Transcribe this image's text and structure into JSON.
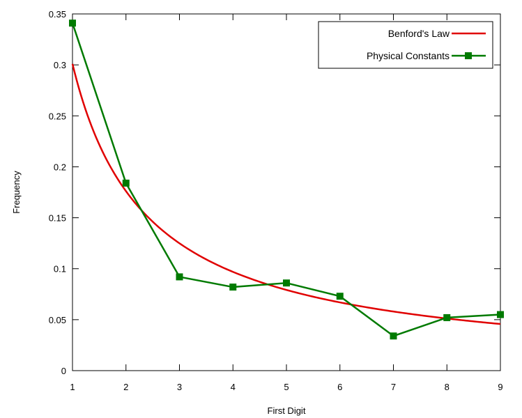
{
  "chart_data": {
    "type": "line",
    "title": "",
    "xlabel": "First Digit",
    "ylabel": "Frequency",
    "xlim": [
      1,
      9
    ],
    "ylim": [
      0,
      0.35
    ],
    "x_ticks": [
      "1",
      "2",
      "3",
      "4",
      "5",
      "6",
      "7",
      "8",
      "9"
    ],
    "y_ticks": [
      "0",
      "0.05",
      "0.1",
      "0.15",
      "0.2",
      "0.25",
      "0.3",
      "0.35"
    ],
    "legend_position": "top-right",
    "grid": false,
    "series": [
      {
        "name": "Benford's Law",
        "kind": "curve",
        "formula": "log10(1 + 1/x)",
        "color": "#e00000",
        "marker": "none"
      },
      {
        "name": "Physical Constants",
        "kind": "line-points",
        "color": "#007a00",
        "marker": "square",
        "x": [
          1,
          2,
          3,
          4,
          5,
          6,
          7,
          8,
          9
        ],
        "y": [
          0.341,
          0.184,
          0.092,
          0.082,
          0.086,
          0.073,
          0.034,
          0.052,
          0.055
        ]
      }
    ]
  }
}
